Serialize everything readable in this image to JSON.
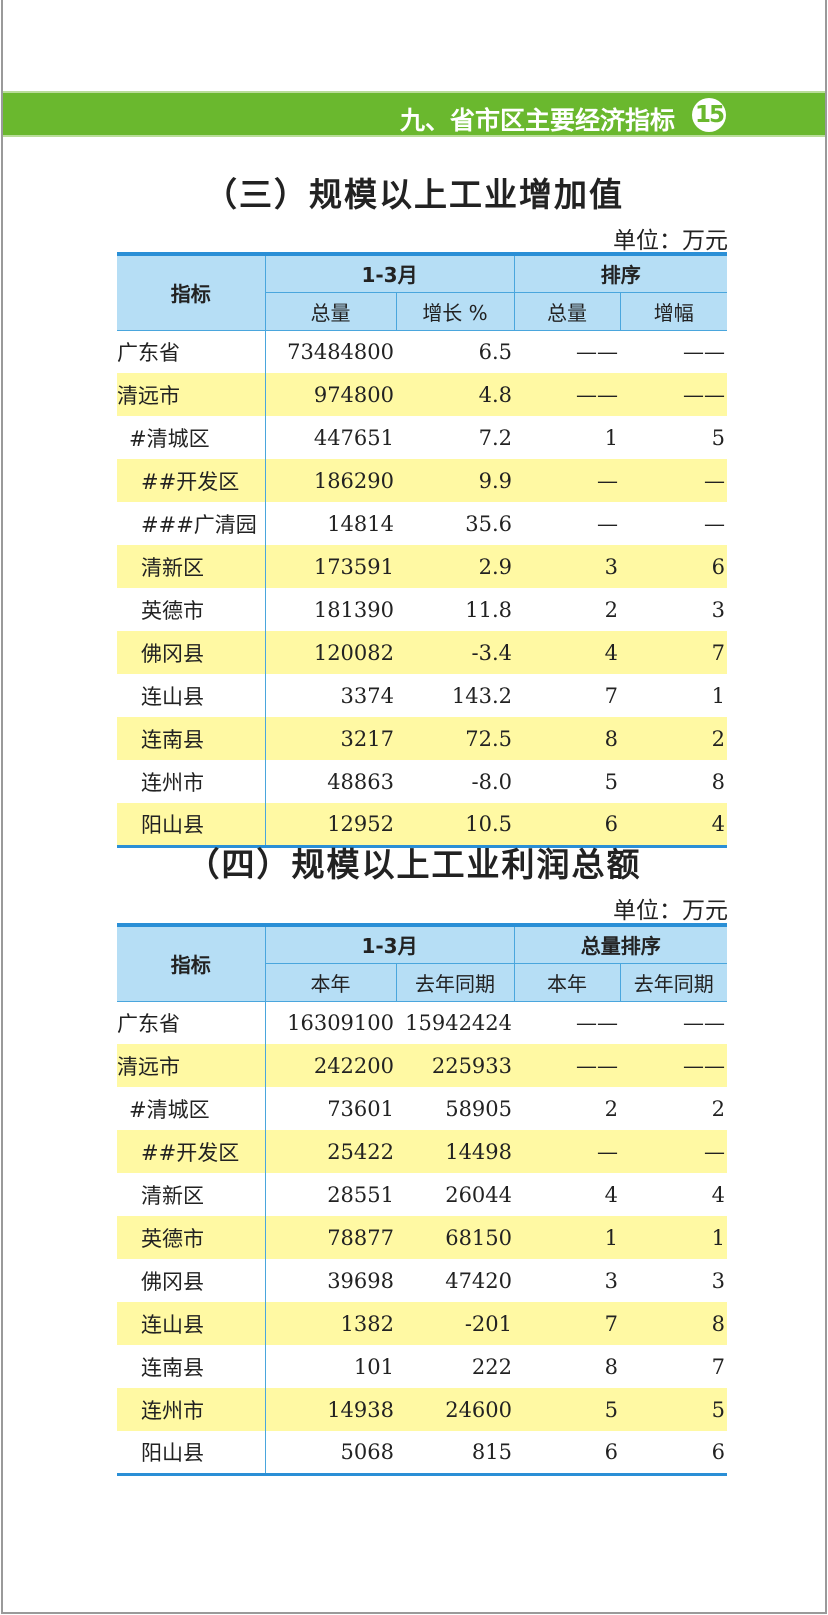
{
  "header": {
    "section": "九、省市区主要经济指标",
    "page_number": "15",
    "accent": "#6ab82e"
  },
  "tables": [
    {
      "title": "（三）规模以上工业增加值",
      "unit": "单位：万元",
      "col_header": "指标",
      "group1": "1-3月",
      "group2": "排序",
      "sub": [
        "总量",
        "增长 %",
        "总量",
        "增幅"
      ],
      "rows": [
        [
          "广东省",
          "73484800",
          "6.5",
          "——",
          "——",
          0
        ],
        [
          "清远市",
          "974800",
          "4.8",
          "——",
          "——",
          0
        ],
        [
          "#清城区",
          "447651",
          "7.2",
          "1",
          "5",
          1
        ],
        [
          "##开发区",
          "186290",
          "9.9",
          "—",
          "—",
          2
        ],
        [
          "###广清园",
          "14814",
          "35.6",
          "—",
          "—",
          2
        ],
        [
          "清新区",
          "173591",
          "2.9",
          "3",
          "6",
          2
        ],
        [
          "英德市",
          "181390",
          "11.8",
          "2",
          "3",
          2
        ],
        [
          "佛冈县",
          "120082",
          "-3.4",
          "4",
          "7",
          2
        ],
        [
          "连山县",
          "3374",
          "143.2",
          "7",
          "1",
          2
        ],
        [
          "连南县",
          "3217",
          "72.5",
          "8",
          "2",
          2
        ],
        [
          "连州市",
          "48863",
          "-8.0",
          "5",
          "8",
          2
        ],
        [
          "阳山县",
          "12952",
          "10.5",
          "6",
          "4",
          2
        ]
      ]
    },
    {
      "title": "（四）规模以上工业利润总额",
      "unit": "单位：万元",
      "col_header": "指标",
      "group1": "1-3月",
      "group2": "总量排序",
      "sub": [
        "本年",
        "去年同期",
        "本年",
        "去年同期"
      ],
      "rows": [
        [
          "广东省",
          "16309100",
          "15942424",
          "——",
          "——",
          0
        ],
        [
          "清远市",
          "242200",
          "225933",
          "——",
          "——",
          0
        ],
        [
          "#清城区",
          "73601",
          "58905",
          "2",
          "2",
          1
        ],
        [
          "##开发区",
          "25422",
          "14498",
          "—",
          "—",
          2
        ],
        [
          "清新区",
          "28551",
          "26044",
          "4",
          "4",
          2
        ],
        [
          "英德市",
          "78877",
          "68150",
          "1",
          "1",
          2
        ],
        [
          "佛冈县",
          "39698",
          "47420",
          "3",
          "3",
          2
        ],
        [
          "连山县",
          "1382",
          "-201",
          "7",
          "8",
          2
        ],
        [
          "连南县",
          "101",
          "222",
          "8",
          "7",
          2
        ],
        [
          "连州市",
          "14938",
          "24600",
          "5",
          "5",
          2
        ],
        [
          "阳山县",
          "5068",
          "815",
          "6",
          "6",
          2
        ]
      ]
    }
  ]
}
